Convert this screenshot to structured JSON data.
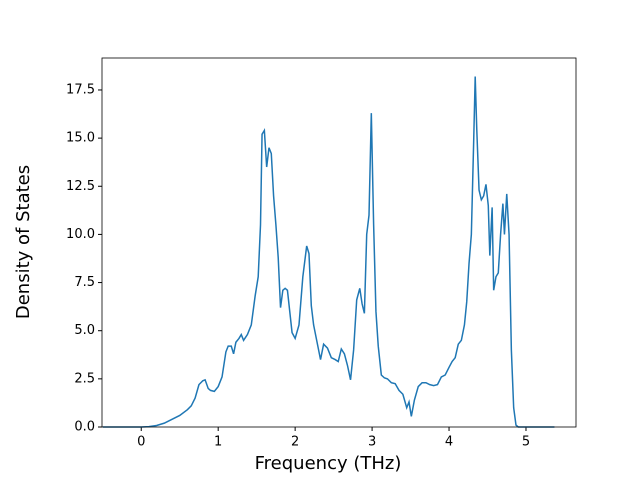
{
  "chart_data": {
    "type": "line",
    "xlabel": "Frequency (THz)",
    "ylabel": "Density of States",
    "xlim": [
      -0.51,
      5.65
    ],
    "ylim": [
      0,
      19.16
    ],
    "xticks": [
      0,
      1,
      2,
      3,
      4,
      5
    ],
    "yticks": [
      {
        "value": 0,
        "label": "0.0"
      },
      {
        "value": 2.5,
        "label": "2.5"
      },
      {
        "value": 5,
        "label": "5.0"
      },
      {
        "value": 7.5,
        "label": "7.5"
      },
      {
        "value": 10,
        "label": "10.0"
      },
      {
        "value": 12.5,
        "label": "12.5"
      },
      {
        "value": 15,
        "label": "15.0"
      },
      {
        "value": 17.5,
        "label": "17.5"
      }
    ],
    "x": [
      -0.5,
      0,
      0.1,
      0.2,
      0.3,
      0.4,
      0.5,
      0.6,
      0.65,
      0.7,
      0.75,
      0.8,
      0.83,
      0.87,
      0.9,
      0.95,
      1.0,
      1.05,
      1.1,
      1.13,
      1.17,
      1.2,
      1.23,
      1.27,
      1.3,
      1.33,
      1.38,
      1.43,
      1.48,
      1.52,
      1.55,
      1.57,
      1.6,
      1.63,
      1.66,
      1.69,
      1.72,
      1.75,
      1.78,
      1.81,
      1.84,
      1.87,
      1.9,
      1.93,
      1.96,
      2.0,
      2.05,
      2.1,
      2.15,
      2.18,
      2.21,
      2.24,
      2.28,
      2.33,
      2.37,
      2.42,
      2.47,
      2.52,
      2.56,
      2.6,
      2.64,
      2.68,
      2.72,
      2.76,
      2.8,
      2.84,
      2.87,
      2.9,
      2.93,
      2.96,
      2.99,
      3.02,
      3.05,
      3.08,
      3.12,
      3.16,
      3.2,
      3.25,
      3.3,
      3.35,
      3.4,
      3.45,
      3.48,
      3.51,
      3.55,
      3.6,
      3.65,
      3.7,
      3.75,
      3.8,
      3.85,
      3.9,
      3.95,
      4.0,
      4.04,
      4.08,
      4.12,
      4.16,
      4.2,
      4.23,
      4.26,
      4.29,
      4.32,
      4.34,
      4.36,
      4.39,
      4.42,
      4.45,
      4.48,
      4.51,
      4.53,
      4.56,
      4.58,
      4.61,
      4.64,
      4.67,
      4.7,
      4.72,
      4.75,
      4.78,
      4.81,
      4.84,
      4.87,
      4.9,
      5.37
    ],
    "series": [
      {
        "name": "DOS",
        "color": "#1f77b4",
        "values": [
          0,
          0,
          0.02,
          0.08,
          0.2,
          0.4,
          0.6,
          0.9,
          1.1,
          1.5,
          2.2,
          2.4,
          2.45,
          2.0,
          1.9,
          1.85,
          2.1,
          2.6,
          3.9,
          4.2,
          4.2,
          3.8,
          4.4,
          4.6,
          4.8,
          4.5,
          4.8,
          5.3,
          6.8,
          7.8,
          10.5,
          15.2,
          15.4,
          13.5,
          14.5,
          14.2,
          12,
          10.5,
          8.8,
          6.2,
          7.1,
          7.2,
          7.1,
          6,
          4.9,
          4.6,
          5.3,
          7.8,
          9.4,
          9,
          6.3,
          5.3,
          4.5,
          3.5,
          4.3,
          4.1,
          3.6,
          3.5,
          3.4,
          4.05,
          3.8,
          3.2,
          2.45,
          4,
          6.6,
          7.2,
          6.4,
          5.9,
          10,
          11,
          16.3,
          10.5,
          6,
          4.2,
          2.7,
          2.55,
          2.5,
          2.3,
          2.25,
          1.9,
          1.7,
          1.0,
          1.3,
          0.55,
          1.4,
          2.1,
          2.3,
          2.3,
          2.2,
          2.15,
          2.2,
          2.6,
          2.7,
          3.1,
          3.4,
          3.6,
          4.3,
          4.5,
          5.3,
          6.5,
          8.5,
          10,
          14.8,
          18.2,
          15.5,
          12.3,
          11.8,
          12,
          12.6,
          11.5,
          8.9,
          11.4,
          7.1,
          7.8,
          8,
          10,
          11.6,
          10,
          12.1,
          10,
          4,
          1,
          0.1,
          0,
          0
        ]
      }
    ]
  }
}
